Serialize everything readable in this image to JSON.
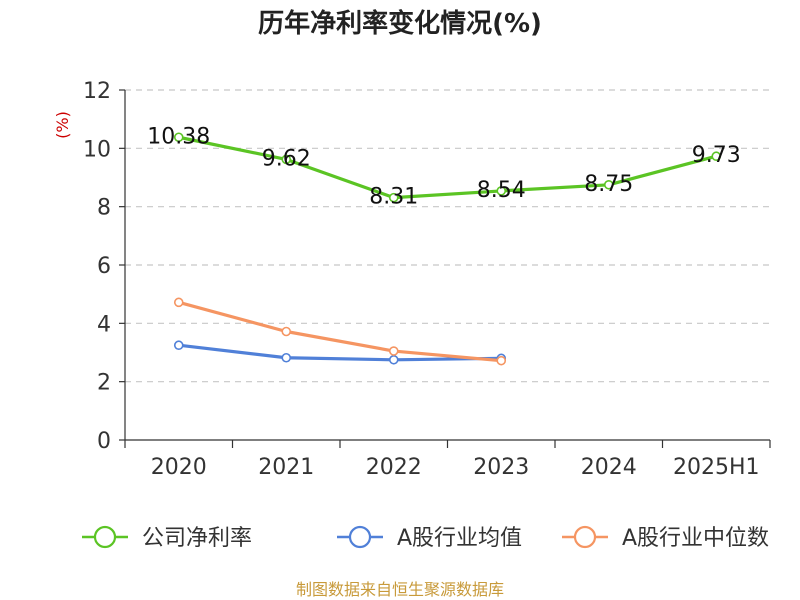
{
  "chart_data": {
    "type": "line",
    "title": "历年净利率变化情况(%)",
    "ylabel": "(%)",
    "xlabel": "",
    "categories": [
      "2020",
      "2021",
      "2022",
      "2023",
      "2024",
      "2025H1"
    ],
    "ylim": [
      0,
      12
    ],
    "yticks": [
      0,
      2,
      4,
      6,
      8,
      10,
      12
    ],
    "grid": true,
    "legend_position": "bottom",
    "series": [
      {
        "name": "公司净利率",
        "color": "#5bc424",
        "show_labels": true,
        "values": [
          10.38,
          9.62,
          8.31,
          8.54,
          8.75,
          9.73
        ],
        "labels": [
          "10.38",
          "9.62",
          "8.31",
          "8.54",
          "8.75",
          "9.73"
        ]
      },
      {
        "name": "A股行业均值",
        "color": "#5080d8",
        "show_labels": false,
        "values": [
          3.25,
          2.82,
          2.75,
          2.8,
          null,
          null
        ]
      },
      {
        "name": "A股行业中位数",
        "color": "#f59562",
        "show_labels": false,
        "values": [
          4.72,
          3.72,
          3.05,
          2.72,
          null,
          null
        ]
      }
    ]
  },
  "source_text": "制图数据来自恒生聚源数据库"
}
